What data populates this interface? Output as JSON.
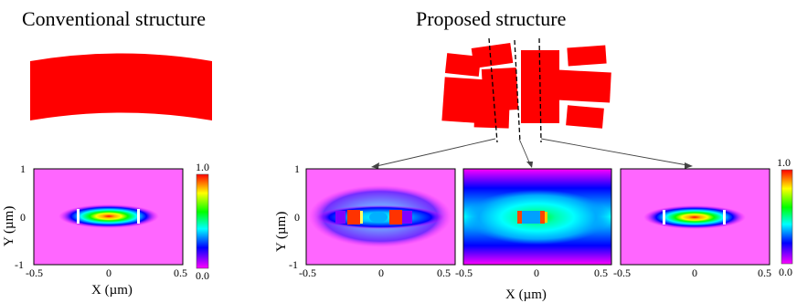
{
  "headings": {
    "conventional": "Conventional structure",
    "proposed": "Proposed structure"
  },
  "axes": {
    "xlabel": "X (µm)",
    "ylabel": "Y (µm)",
    "x_ticks": [
      "-0.5",
      "0",
      "0.5"
    ],
    "y_ticks": [
      "1",
      "0",
      "-1"
    ]
  },
  "colorbar": {
    "max_label": "1.0",
    "min_label": "0.0",
    "colors": [
      "#ff00ff",
      "#0000ff",
      "#00ffff",
      "#00ff00",
      "#ffff00",
      "#ff0000"
    ]
  },
  "colors": {
    "waveguide": "#ff0000",
    "background_field": "#ff66ff"
  },
  "panels": [
    {
      "id": "conventional",
      "mode": "fundamental"
    },
    {
      "id": "proposed-1",
      "mode": "split-slots"
    },
    {
      "id": "proposed-2",
      "mode": "central-slot"
    },
    {
      "id": "proposed-3",
      "mode": "fundamental"
    }
  ]
}
